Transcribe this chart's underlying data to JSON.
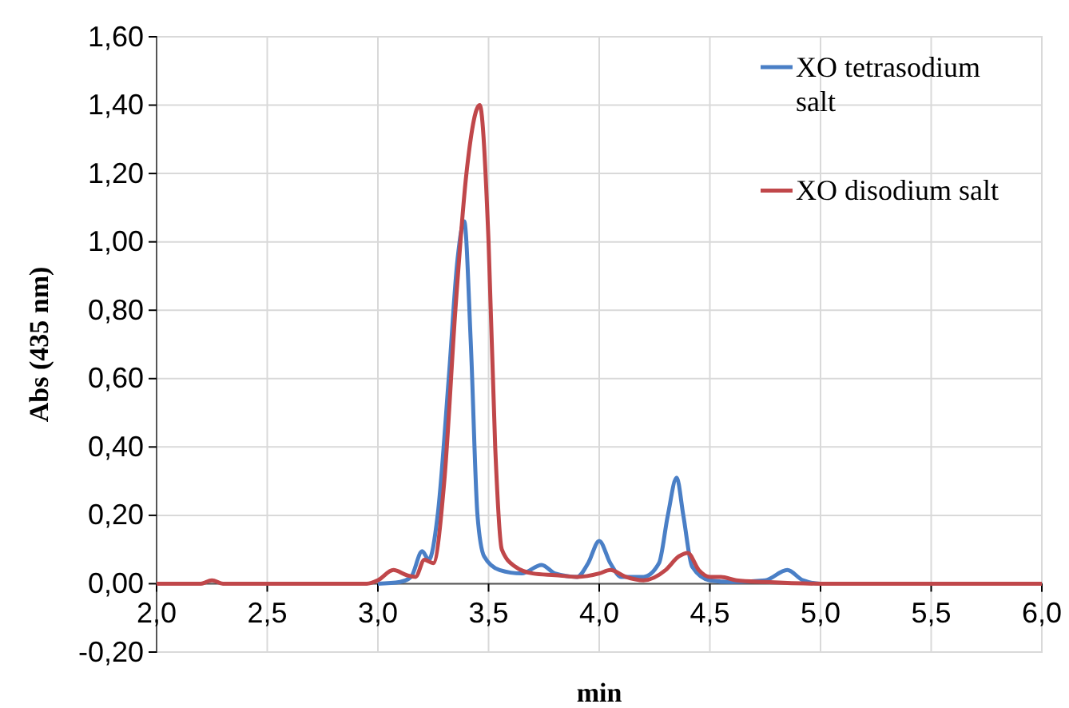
{
  "chart_data": {
    "type": "line",
    "xlabel": "min",
    "ylabel": "Abs (435 nm)",
    "xlim": [
      2.0,
      6.0
    ],
    "ylim": [
      -0.2,
      1.6
    ],
    "xticks": [
      {
        "value": 2.0,
        "label": "2,0"
      },
      {
        "value": 2.5,
        "label": "2,5"
      },
      {
        "value": 3.0,
        "label": "3,0"
      },
      {
        "value": 3.5,
        "label": "3,5"
      },
      {
        "value": 4.0,
        "label": "4,0"
      },
      {
        "value": 4.5,
        "label": "4,5"
      },
      {
        "value": 5.0,
        "label": "5,0"
      },
      {
        "value": 5.5,
        "label": "5,5"
      },
      {
        "value": 6.0,
        "label": "6,0"
      }
    ],
    "yticks": [
      {
        "value": -0.2,
        "label": "-0,20"
      },
      {
        "value": 0,
        "label": "0,00"
      },
      {
        "value": 0.2,
        "label": "0,20"
      },
      {
        "value": 0.4,
        "label": "0,40"
      },
      {
        "value": 0.6,
        "label": "0,60"
      },
      {
        "value": 0.8,
        "label": "0,80"
      },
      {
        "value": 1.0,
        "label": "1,00"
      },
      {
        "value": 1.2,
        "label": "1,20"
      },
      {
        "value": 1.4,
        "label": "1,40"
      },
      {
        "value": 1.6,
        "label": "1,60"
      }
    ],
    "grid": true,
    "legend": "top right",
    "marker": "none",
    "line_style": "solid",
    "series": [
      {
        "name": "XO tetrasodium salt",
        "color": "#4a7fc6",
        "x": [
          3.0,
          3.1,
          3.15,
          3.2,
          3.23,
          3.27,
          3.32,
          3.36,
          3.39,
          3.42,
          3.45,
          3.48,
          3.55,
          3.65,
          3.74,
          3.8,
          3.9,
          3.95,
          4.0,
          4.05,
          4.1,
          4.2,
          4.27,
          4.31,
          4.35,
          4.38,
          4.42,
          4.5,
          4.6,
          4.75,
          4.85,
          4.92,
          5.0,
          6.0
        ],
        "values": [
          0,
          0.005,
          0.02,
          0.095,
          0.07,
          0.2,
          0.6,
          0.95,
          1.06,
          0.7,
          0.2,
          0.08,
          0.04,
          0.03,
          0.055,
          0.03,
          0.02,
          0.06,
          0.125,
          0.06,
          0.02,
          0.02,
          0.06,
          0.2,
          0.31,
          0.2,
          0.05,
          0.01,
          0.005,
          0.01,
          0.04,
          0.01,
          0,
          0
        ]
      },
      {
        "name": "XO disodium salt",
        "color": "#c0474a",
        "x": [
          2.0,
          2.2,
          2.25,
          2.3,
          2.95,
          3.0,
          3.07,
          3.13,
          3.17,
          3.21,
          3.25,
          3.3,
          3.35,
          3.4,
          3.46,
          3.5,
          3.53,
          3.56,
          3.62,
          3.7,
          3.8,
          3.9,
          4.0,
          4.05,
          4.12,
          4.2,
          4.3,
          4.36,
          4.4,
          4.45,
          4.5,
          4.55,
          4.62,
          4.75,
          5.0,
          6.0
        ],
        "values": [
          0,
          0,
          0.01,
          0,
          0,
          0.01,
          0.04,
          0.025,
          0.02,
          0.07,
          0.06,
          0.3,
          0.8,
          1.2,
          1.4,
          1.0,
          0.4,
          0.1,
          0.05,
          0.03,
          0.025,
          0.02,
          0.03,
          0.04,
          0.02,
          0.01,
          0.04,
          0.08,
          0.09,
          0.04,
          0.02,
          0.02,
          0.01,
          0.005,
          0,
          0
        ]
      }
    ]
  }
}
